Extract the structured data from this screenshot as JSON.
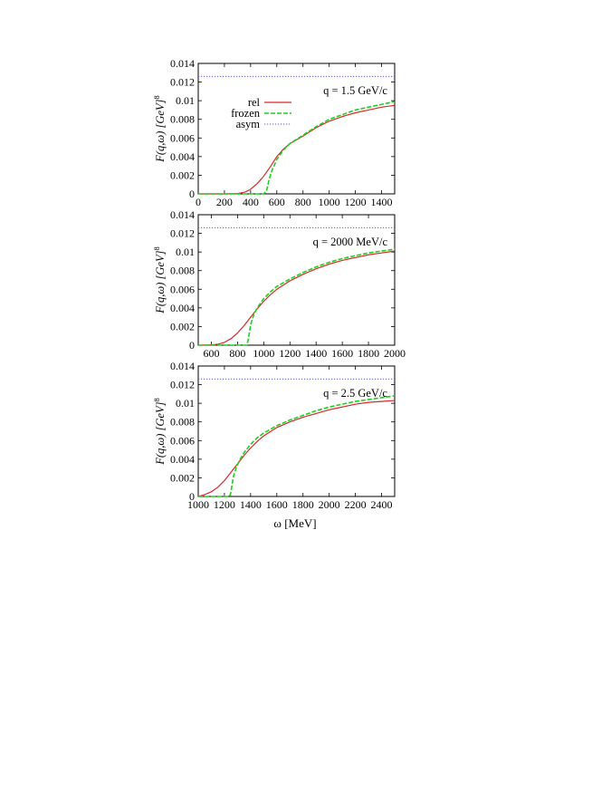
{
  "figure": {
    "xlabel": "ω [MeV]",
    "ylabel": "F(q,ω) [GeV]",
    "ylabel_exponent": "8"
  },
  "colors": {
    "rel": "#d42a2a",
    "frozen": "#1ecf1e",
    "asym": "#5a5ad6"
  },
  "legend": {
    "placement": "top-left",
    "entries": [
      {
        "label": "rel",
        "series": "rel"
      },
      {
        "label": "frozen",
        "series": "frozen"
      },
      {
        "label": "asym",
        "series": "asym"
      }
    ]
  },
  "chart_data": [
    {
      "type": "line",
      "annotation": "q = 1.5 GeV/c",
      "xlim": [
        0,
        1500
      ],
      "ylim": [
        0,
        0.014
      ],
      "xticks": [
        "0",
        "200",
        "400",
        "600",
        "800",
        "1000",
        "1200",
        "1400"
      ],
      "yticks": [
        "0",
        "0.002",
        "0.004",
        "0.006",
        "0.008",
        "0.01",
        "0.012",
        "0.014"
      ],
      "series": [
        {
          "key": "rel",
          "x": [
            0,
            200,
            300,
            360,
            400,
            450,
            500,
            550,
            600,
            650,
            700,
            800,
            900,
            1000,
            1100,
            1200,
            1300,
            1400,
            1500
          ],
          "y": [
            0,
            0,
            3e-05,
            0.0002,
            0.0005,
            0.0011,
            0.0019,
            0.0029,
            0.004,
            0.0048,
            0.0054,
            0.0062,
            0.0071,
            0.0078,
            0.0083,
            0.0087,
            0.009,
            0.0093,
            0.0095
          ]
        },
        {
          "key": "frozen",
          "x": [
            0,
            500,
            520,
            530,
            540,
            560,
            600,
            650,
            700,
            800,
            900,
            1000,
            1100,
            1200,
            1300,
            1400,
            1500
          ],
          "y": [
            0,
            0,
            0.0003,
            0.0008,
            0.0015,
            0.0024,
            0.0037,
            0.0047,
            0.0054,
            0.0063,
            0.0072,
            0.008,
            0.0085,
            0.009,
            0.0093,
            0.0096,
            0.0099
          ]
        },
        {
          "key": "asym",
          "x": [
            0,
            1500
          ],
          "y": [
            0.0126,
            0.0126
          ]
        }
      ]
    },
    {
      "type": "line",
      "annotation": "q = 2000 MeV/c",
      "xlim": [
        500,
        2000
      ],
      "ylim": [
        0,
        0.014
      ],
      "xticks": [
        "600",
        "800",
        "1000",
        "1200",
        "1400",
        "1600",
        "1800",
        "2000"
      ],
      "yticks": [
        "0",
        "0.002",
        "0.004",
        "0.006",
        "0.008",
        "0.01",
        "0.012",
        "0.014"
      ],
      "series": [
        {
          "key": "rel",
          "x": [
            500,
            600,
            650,
            700,
            750,
            800,
            850,
            900,
            950,
            1000,
            1050,
            1100,
            1200,
            1300,
            1400,
            1500,
            1600,
            1700,
            1800,
            1900,
            2000
          ],
          "y": [
            0,
            3e-05,
            0.0001,
            0.0003,
            0.0007,
            0.0013,
            0.0021,
            0.003,
            0.0039,
            0.0047,
            0.0054,
            0.006,
            0.0069,
            0.0076,
            0.0082,
            0.0087,
            0.0091,
            0.0094,
            0.0097,
            0.0099,
            0.0101
          ]
        },
        {
          "key": "frozen",
          "x": [
            500,
            870,
            880,
            890,
            900,
            925,
            950,
            1000,
            1050,
            1100,
            1200,
            1300,
            1400,
            1500,
            1600,
            1700,
            1800,
            1900,
            2000
          ],
          "y": [
            0,
            0,
            0.0005,
            0.0013,
            0.0022,
            0.0033,
            0.004,
            0.005,
            0.0057,
            0.0063,
            0.0071,
            0.0078,
            0.0084,
            0.0089,
            0.0093,
            0.0096,
            0.0099,
            0.0101,
            0.0103
          ]
        },
        {
          "key": "asym",
          "x": [
            500,
            2000
          ],
          "y": [
            0.0126,
            0.0126
          ]
        }
      ]
    },
    {
      "type": "line",
      "annotation": "q = 2.5 GeV/c",
      "xlim": [
        1000,
        2500
      ],
      "ylim": [
        0,
        0.014
      ],
      "xticks": [
        "1000",
        "1200",
        "1400",
        "1600",
        "1800",
        "2000",
        "2200",
        "2400"
      ],
      "yticks": [
        "0",
        "0.002",
        "0.004",
        "0.006",
        "0.008",
        "0.01",
        "0.012",
        "0.014"
      ],
      "series": [
        {
          "key": "rel",
          "x": [
            1000,
            1050,
            1100,
            1150,
            1200,
            1250,
            1300,
            1350,
            1400,
            1450,
            1500,
            1600,
            1700,
            1800,
            1900,
            2000,
            2100,
            2200,
            2300,
            2400,
            2500
          ],
          "y": [
            0,
            0.0002,
            0.0005,
            0.001,
            0.0017,
            0.0026,
            0.0035,
            0.0044,
            0.0052,
            0.0059,
            0.0065,
            0.0074,
            0.008,
            0.0085,
            0.0089,
            0.0093,
            0.0096,
            0.0099,
            0.0101,
            0.0102,
            0.0103
          ]
        },
        {
          "key": "frozen",
          "x": [
            1000,
            1240,
            1250,
            1260,
            1270,
            1290,
            1320,
            1350,
            1400,
            1450,
            1500,
            1600,
            1700,
            1800,
            1900,
            2000,
            2100,
            2200,
            2300,
            2400,
            2500
          ],
          "y": [
            0,
            0,
            0.0005,
            0.0014,
            0.0022,
            0.0031,
            0.004,
            0.0047,
            0.0056,
            0.0063,
            0.0068,
            0.0076,
            0.0082,
            0.0087,
            0.0092,
            0.0096,
            0.0099,
            0.0102,
            0.0104,
            0.0106,
            0.0108
          ]
        },
        {
          "key": "asym",
          "x": [
            1000,
            2500
          ],
          "y": [
            0.0126,
            0.0126
          ]
        }
      ]
    }
  ]
}
